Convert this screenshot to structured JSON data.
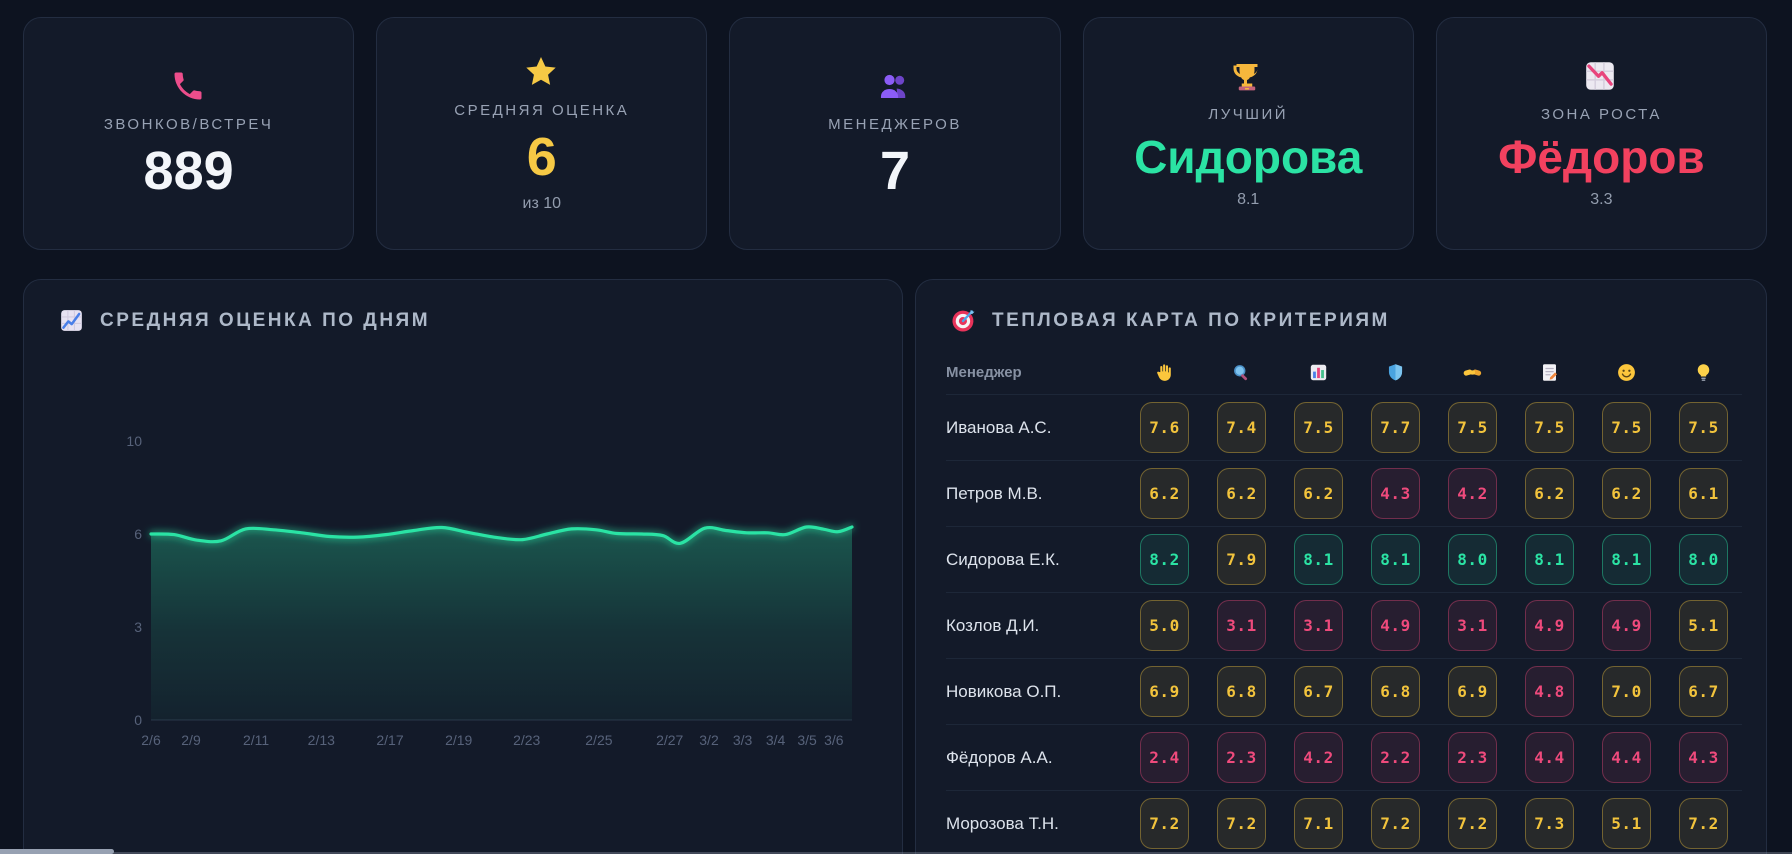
{
  "kpi_cards": [
    {
      "icon": "phone-icon",
      "label": "ЗВОНКОВ/ВСТРЕЧ",
      "value": "889",
      "value_style": "plain",
      "sub": ""
    },
    {
      "icon": "star-icon",
      "label": "СРЕДНЯЯ ОЦЕНКА",
      "value": "6",
      "value_style": "yellow",
      "sub": "из 10"
    },
    {
      "icon": "people-icon",
      "label": "МЕНЕДЖЕРОВ",
      "value": "7",
      "value_style": "plain",
      "sub": ""
    },
    {
      "icon": "trophy-icon",
      "label": "ЛУЧШИЙ",
      "value": "Сидорова",
      "value_style": "green",
      "sub": "8.1"
    },
    {
      "icon": "chart-down-icon",
      "label": "ЗОНА РОСТА",
      "value": "Фёдоров",
      "value_style": "red",
      "sub": "3.3"
    }
  ],
  "chart_card": {
    "icon": "chart-up-icon",
    "title": "СРЕДНЯЯ ОЦЕНКА ПО ДНЯМ"
  },
  "chart_data": {
    "type": "area",
    "title": "СРЕДНЯЯ ОЦЕНКА ПО ДНЯМ",
    "ylabel": "",
    "xlabel": "",
    "ylim": [
      0,
      10
    ],
    "yticks": [
      0,
      3,
      6,
      10
    ],
    "grid": false,
    "legend": "none",
    "line_color": "#2be3a4",
    "fill_color": "#2be3a4",
    "xticks": [
      {
        "label": "2/6",
        "fx": 0.0
      },
      {
        "label": "2/9",
        "fx": 0.057
      },
      {
        "label": "2/11",
        "fx": 0.15
      },
      {
        "label": "2/13",
        "fx": 0.243
      },
      {
        "label": "2/17",
        "fx": 0.341
      },
      {
        "label": "2/19",
        "fx": 0.439
      },
      {
        "label": "2/23",
        "fx": 0.536
      },
      {
        "label": "2/25",
        "fx": 0.639
      },
      {
        "label": "2/27",
        "fx": 0.74
      },
      {
        "label": "3/2",
        "fx": 0.796
      },
      {
        "label": "3/3",
        "fx": 0.844
      },
      {
        "label": "3/4",
        "fx": 0.891
      },
      {
        "label": "3/5",
        "fx": 0.936
      },
      {
        "label": "3/6",
        "fx": 0.974
      }
    ],
    "series": [
      {
        "name": "Средняя оценка",
        "points": [
          {
            "fx": 0.0,
            "v": 6.0
          },
          {
            "fx": 0.033,
            "v": 5.98
          },
          {
            "fx": 0.066,
            "v": 5.8
          },
          {
            "fx": 0.1,
            "v": 5.78
          },
          {
            "fx": 0.135,
            "v": 6.22
          },
          {
            "fx": 0.175,
            "v": 6.18
          },
          {
            "fx": 0.215,
            "v": 6.05
          },
          {
            "fx": 0.255,
            "v": 5.92
          },
          {
            "fx": 0.295,
            "v": 5.9
          },
          {
            "fx": 0.335,
            "v": 5.98
          },
          {
            "fx": 0.375,
            "v": 6.15
          },
          {
            "fx": 0.415,
            "v": 6.28
          },
          {
            "fx": 0.455,
            "v": 6.05
          },
          {
            "fx": 0.495,
            "v": 5.88
          },
          {
            "fx": 0.53,
            "v": 5.82
          },
          {
            "fx": 0.565,
            "v": 6.0
          },
          {
            "fx": 0.6,
            "v": 6.22
          },
          {
            "fx": 0.635,
            "v": 6.18
          },
          {
            "fx": 0.665,
            "v": 6.02
          },
          {
            "fx": 0.7,
            "v": 6.0
          },
          {
            "fx": 0.73,
            "v": 5.95
          },
          {
            "fx": 0.755,
            "v": 5.7
          },
          {
            "fx": 0.79,
            "v": 6.25
          },
          {
            "fx": 0.82,
            "v": 6.15
          },
          {
            "fx": 0.85,
            "v": 6.05
          },
          {
            "fx": 0.88,
            "v": 6.05
          },
          {
            "fx": 0.905,
            "v": 5.98
          },
          {
            "fx": 0.935,
            "v": 6.3
          },
          {
            "fx": 0.96,
            "v": 6.2
          },
          {
            "fx": 0.98,
            "v": 6.1
          },
          {
            "fx": 1.0,
            "v": 6.3
          }
        ]
      }
    ]
  },
  "heatmap_card": {
    "icon": "target-icon",
    "title": "ТЕПЛОВАЯ КАРТА ПО КРИТЕРИЯМ",
    "manager_col_header": "Менеджер",
    "criteria_icons": [
      {
        "icon": "wave-hand-icon",
        "glyph": "👋"
      },
      {
        "icon": "magnifier-icon",
        "glyph": "🔍"
      },
      {
        "icon": "bar-chart-icon",
        "glyph": "📊"
      },
      {
        "icon": "shield-icon",
        "glyph": "🛡️"
      },
      {
        "icon": "handshake-icon",
        "glyph": "🤝"
      },
      {
        "icon": "memo-icon",
        "glyph": "📝"
      },
      {
        "icon": "smile-icon",
        "glyph": "😊"
      },
      {
        "icon": "bulb-icon",
        "glyph": "💡"
      }
    ],
    "thresholds": {
      "good_min": 8.0,
      "ok_min": 5.0
    },
    "colors": {
      "good": "#2be3a4",
      "ok": "#f2c33c",
      "bad": "#ef4a7c"
    },
    "rows": [
      {
        "name": "Иванова А.С.",
        "values": [
          "7.6",
          "7.4",
          "7.5",
          "7.7",
          "7.5",
          "7.5",
          "7.5",
          "7.5"
        ]
      },
      {
        "name": "Петров М.В.",
        "values": [
          "6.2",
          "6.2",
          "6.2",
          "4.3",
          "4.2",
          "6.2",
          "6.2",
          "6.1"
        ]
      },
      {
        "name": "Сидорова Е.К.",
        "values": [
          "8.2",
          "7.9",
          "8.1",
          "8.1",
          "8.0",
          "8.1",
          "8.1",
          "8.0"
        ]
      },
      {
        "name": "Козлов Д.И.",
        "values": [
          "5.0",
          "3.1",
          "3.1",
          "4.9",
          "3.1",
          "4.9",
          "4.9",
          "5.1"
        ]
      },
      {
        "name": "Новикова О.П.",
        "values": [
          "6.9",
          "6.8",
          "6.7",
          "6.8",
          "6.9",
          "4.8",
          "7.0",
          "6.7"
        ]
      },
      {
        "name": "Фёдоров А.А.",
        "values": [
          "2.4",
          "2.3",
          "4.2",
          "2.2",
          "2.3",
          "4.4",
          "4.4",
          "4.3"
        ]
      },
      {
        "name": "Морозова Т.Н.",
        "values": [
          "7.2",
          "7.2",
          "7.1",
          "7.2",
          "7.2",
          "7.3",
          "5.1",
          "7.2"
        ]
      }
    ]
  }
}
